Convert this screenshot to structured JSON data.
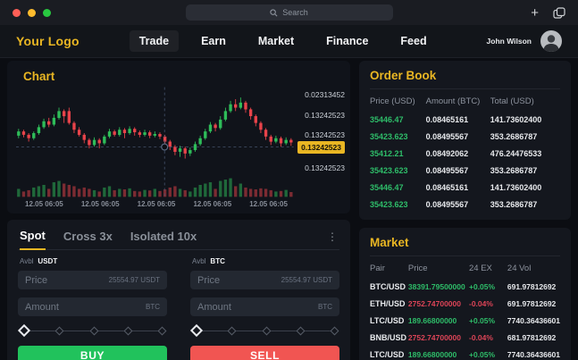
{
  "window": {
    "search_placeholder": "Search"
  },
  "header": {
    "logo": "Your Logo",
    "nav": [
      {
        "label": "Trade",
        "active": true
      },
      {
        "label": "Earn",
        "active": false
      },
      {
        "label": "Market",
        "active": false
      },
      {
        "label": "Finance",
        "active": false
      },
      {
        "label": "Feed",
        "active": false
      }
    ],
    "user_name": "John Wilson"
  },
  "chart": {
    "title": "Chart",
    "y_axis_labels": [
      {
        "text": "0.02313452",
        "highlighted": false
      },
      {
        "text": "0.13242523",
        "highlighted": false
      },
      {
        "text": "0.13242523",
        "highlighted": false
      },
      {
        "text": "0.13242523",
        "highlighted": true
      },
      {
        "text": "0.13242523",
        "highlighted": false
      }
    ],
    "x_axis_labels": [
      "12.05 06:05",
      "12.05 06:05",
      "12.05 06:05",
      "12.05 06:05",
      "12.05 06:05"
    ]
  },
  "chart_data": {
    "type": "candlestick",
    "title": "Chart",
    "x_labels": [
      "12.05 06:05",
      "12.05 06:05",
      "12.05 06:05",
      "12.05 06:05",
      "12.05 06:05"
    ],
    "price_scale_labels": [
      "0.02313452",
      "0.13242523",
      "0.13242523",
      "0.13242523",
      "0.13242523"
    ],
    "highlighted_price": "0.13242523",
    "up_color": "#2ebd59",
    "down_color": "#e8434a",
    "crosshair": {
      "x_fraction": 0.535,
      "y_fraction": 0.545
    },
    "candles": [
      [
        45,
        50,
        53,
        42,
        30
      ],
      [
        50,
        46,
        52,
        43,
        20
      ],
      [
        46,
        42,
        48,
        38,
        25
      ],
      [
        42,
        48,
        50,
        40,
        35
      ],
      [
        48,
        55,
        58,
        46,
        40
      ],
      [
        55,
        62,
        65,
        53,
        45
      ],
      [
        62,
        58,
        66,
        55,
        30
      ],
      [
        58,
        66,
        70,
        56,
        55
      ],
      [
        66,
        74,
        78,
        64,
        60
      ],
      [
        74,
        68,
        76,
        60,
        50
      ],
      [
        74,
        60,
        78,
        58,
        45
      ],
      [
        60,
        52,
        62,
        48,
        40
      ],
      [
        52,
        46,
        55,
        44,
        30
      ],
      [
        46,
        40,
        48,
        36,
        35
      ],
      [
        40,
        34,
        42,
        30,
        30
      ],
      [
        34,
        40,
        43,
        32,
        25
      ],
      [
        40,
        36,
        42,
        30,
        20
      ],
      [
        36,
        44,
        46,
        34,
        35
      ],
      [
        44,
        50,
        53,
        42,
        40
      ],
      [
        50,
        46,
        52,
        44,
        25
      ],
      [
        46,
        52,
        55,
        44,
        30
      ],
      [
        52,
        48,
        54,
        42,
        28
      ],
      [
        48,
        53,
        56,
        46,
        32
      ],
      [
        53,
        49,
        55,
        45,
        22
      ],
      [
        49,
        46,
        51,
        43,
        20
      ],
      [
        46,
        49,
        52,
        44,
        26
      ],
      [
        49,
        45,
        51,
        42,
        24
      ],
      [
        45,
        47,
        50,
        43,
        30
      ],
      [
        47,
        44,
        49,
        41,
        22
      ],
      [
        44,
        38,
        46,
        35,
        28
      ],
      [
        38,
        32,
        40,
        28,
        35
      ],
      [
        32,
        26,
        34,
        22,
        40
      ],
      [
        26,
        30,
        33,
        20,
        30
      ],
      [
        30,
        24,
        32,
        18,
        25
      ],
      [
        24,
        28,
        31,
        21,
        20
      ],
      [
        28,
        35,
        38,
        26,
        35
      ],
      [
        35,
        42,
        45,
        33,
        45
      ],
      [
        42,
        50,
        53,
        40,
        50
      ],
      [
        50,
        58,
        61,
        48,
        55
      ],
      [
        58,
        54,
        60,
        50,
        30
      ],
      [
        54,
        64,
        68,
        52,
        60
      ],
      [
        64,
        74,
        78,
        62,
        65
      ],
      [
        74,
        82,
        86,
        72,
        70
      ],
      [
        82,
        78,
        88,
        74,
        40
      ],
      [
        78,
        84,
        90,
        76,
        50
      ],
      [
        84,
        76,
        86,
        72,
        35
      ],
      [
        76,
        68,
        78,
        64,
        30
      ],
      [
        68,
        60,
        70,
        56,
        28
      ],
      [
        60,
        52,
        62,
        48,
        32
      ],
      [
        52,
        44,
        54,
        40,
        30
      ],
      [
        44,
        38,
        46,
        34,
        25
      ],
      [
        38,
        42,
        45,
        36,
        20
      ],
      [
        42,
        36,
        44,
        32,
        22
      ],
      [
        36,
        40,
        43,
        34,
        26
      ],
      [
        40,
        37,
        42,
        33,
        18
      ]
    ]
  },
  "trade_panel": {
    "tabs": [
      {
        "label": "Spot",
        "active": true
      },
      {
        "label": "Cross 3x",
        "active": false
      },
      {
        "label": "Isolated 10x",
        "active": false
      }
    ],
    "forms": [
      {
        "side": "buy",
        "avbl_label": "Avbl",
        "avbl_currency": "USDT",
        "price_label": "Price",
        "price_value": "25554.97 USDT",
        "amount_label": "Amount",
        "amount_unit": "BTC",
        "button_label": "BUY",
        "button_color": "#21c25c",
        "slider_steps": 5
      },
      {
        "side": "sell",
        "avbl_label": "Avbl",
        "avbl_currency": "BTC",
        "price_label": "Price",
        "price_value": "25554.97 USDT",
        "amount_label": "Amount",
        "amount_unit": "BTC",
        "button_label": "SELL",
        "button_color": "#f15552",
        "slider_steps": 5
      }
    ]
  },
  "order_book": {
    "title": "Order Book",
    "headers": [
      "Price (USD)",
      "Amount (BTC)",
      "Total (USD)"
    ],
    "rows": [
      {
        "price": "35446.47",
        "amount": "0.08465161",
        "total": "141.73602400",
        "side": "buy"
      },
      {
        "price": "35423.623",
        "amount": "0.08495567",
        "total": "353.2686787",
        "side": "buy"
      },
      {
        "price": "35412.21",
        "amount": "0.08492062",
        "total": "476.24476533",
        "side": "buy"
      },
      {
        "price": "35423.623",
        "amount": "0.08495567",
        "total": "353.2686787",
        "side": "buy"
      },
      {
        "price": "35446.47",
        "amount": "0.08465161",
        "total": "141.73602400",
        "side": "buy"
      },
      {
        "price": "35423.623",
        "amount": "0.08495567",
        "total": "353.2686787",
        "side": "buy"
      }
    ]
  },
  "market": {
    "title": "Market",
    "headers": [
      "Pair",
      "Price",
      "24 EX",
      "24 Vol"
    ],
    "rows": [
      {
        "pair": "BTC/USD",
        "price": "38391.79500000",
        "change": "+0.05%",
        "volume": "691.97812692",
        "direction": "up"
      },
      {
        "pair": "ETH/USD",
        "price": "2752.74700000",
        "change": "-0.04%",
        "volume": "691.97812692",
        "direction": "down"
      },
      {
        "pair": "LTC/USD",
        "price": "189.66800000",
        "change": "+0.05%",
        "volume": "7740.36436601",
        "direction": "up"
      },
      {
        "pair": "BNB/USD",
        "price": "2752.74700000",
        "change": "-0.04%",
        "volume": "681.97812692",
        "direction": "down"
      },
      {
        "pair": "LTC/USD",
        "price": "189.66800000",
        "change": "+0.05%",
        "volume": "7740.36436601",
        "direction": "up"
      }
    ]
  },
  "colors": {
    "accent_gold": "#e9b623",
    "up_green": "#2ebd69",
    "down_red": "#dc4457",
    "buy_button": "#21c25c",
    "sell_button": "#f15552"
  }
}
